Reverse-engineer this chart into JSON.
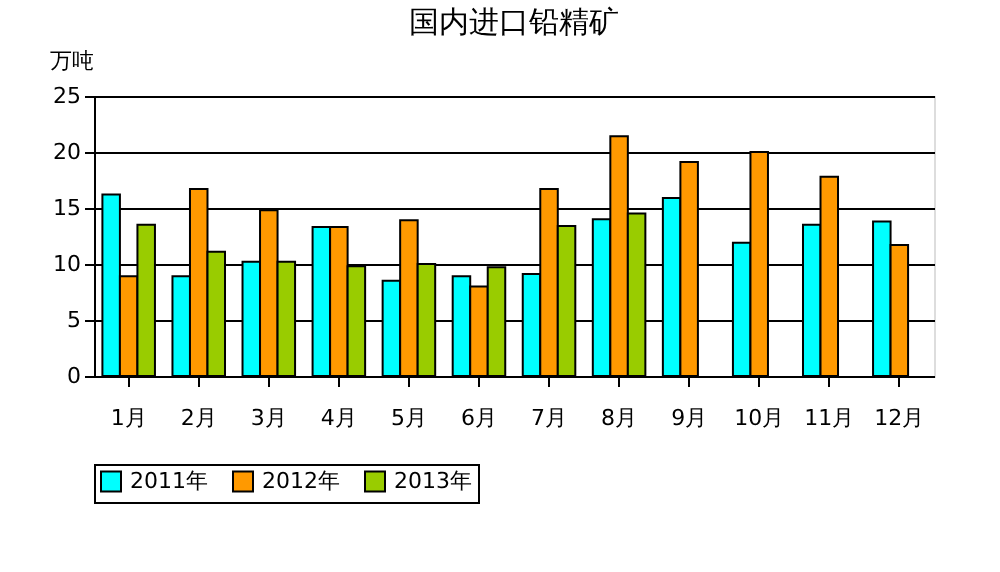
{
  "chart_data": {
    "type": "bar",
    "title": "国内进口铅精矿",
    "ylabel": "万吨",
    "categories": [
      "1月",
      "2月",
      "3月",
      "4月",
      "5月",
      "6月",
      "7月",
      "8月",
      "9月",
      "10月",
      "11月",
      "12月"
    ],
    "series": [
      {
        "name": "2011年",
        "color": "#00ffff",
        "values": [
          16.2,
          8.9,
          10.2,
          13.3,
          8.5,
          8.9,
          9.1,
          14.0,
          15.9,
          11.9,
          13.5,
          13.8
        ]
      },
      {
        "name": "2012年",
        "color": "#ff9900",
        "values": [
          8.9,
          16.7,
          14.8,
          13.3,
          13.9,
          8.0,
          16.7,
          21.4,
          19.1,
          20.0,
          17.8,
          11.7
        ]
      },
      {
        "name": "2013年",
        "color": "#99cc00",
        "values": [
          13.5,
          11.1,
          10.2,
          9.8,
          10.0,
          9.7,
          13.4,
          14.5,
          null,
          null,
          null,
          null
        ]
      }
    ],
    "ylim": [
      0,
      25
    ],
    "yticks": [
      0,
      5,
      10,
      15,
      20,
      25
    ],
    "grid": "y",
    "legend": "bottom"
  }
}
